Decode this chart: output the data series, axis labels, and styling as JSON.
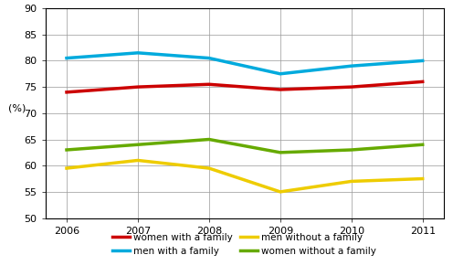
{
  "years": [
    2006,
    2007,
    2008,
    2009,
    2010,
    2011
  ],
  "series": {
    "women with a family": {
      "values": [
        74.0,
        75.0,
        75.5,
        74.5,
        75.0,
        76.0
      ],
      "color": "#cc0000",
      "linewidth": 2.5
    },
    "men with a family": {
      "values": [
        80.5,
        81.5,
        80.5,
        77.5,
        79.0,
        80.0
      ],
      "color": "#00aadd",
      "linewidth": 2.5
    },
    "men without a family": {
      "values": [
        59.5,
        61.0,
        59.5,
        55.0,
        57.0,
        57.5
      ],
      "color": "#eecc00",
      "linewidth": 2.5
    },
    "women without a family": {
      "values": [
        63.0,
        64.0,
        65.0,
        62.5,
        63.0,
        64.0
      ],
      "color": "#66aa00",
      "linewidth": 2.5
    }
  },
  "ylim": [
    50,
    90
  ],
  "yticks": [
    50,
    55,
    60,
    65,
    70,
    75,
    80,
    85,
    90
  ],
  "ylabel": "(%)",
  "background_color": "#ffffff",
  "grid_color": "#999999",
  "plot_order": [
    "women with a family",
    "men with a family",
    "men without a family",
    "women without a family"
  ],
  "legend_col1": [
    "women with a family",
    "men without a family"
  ],
  "legend_col2": [
    "men with a family",
    "women without a family"
  ]
}
